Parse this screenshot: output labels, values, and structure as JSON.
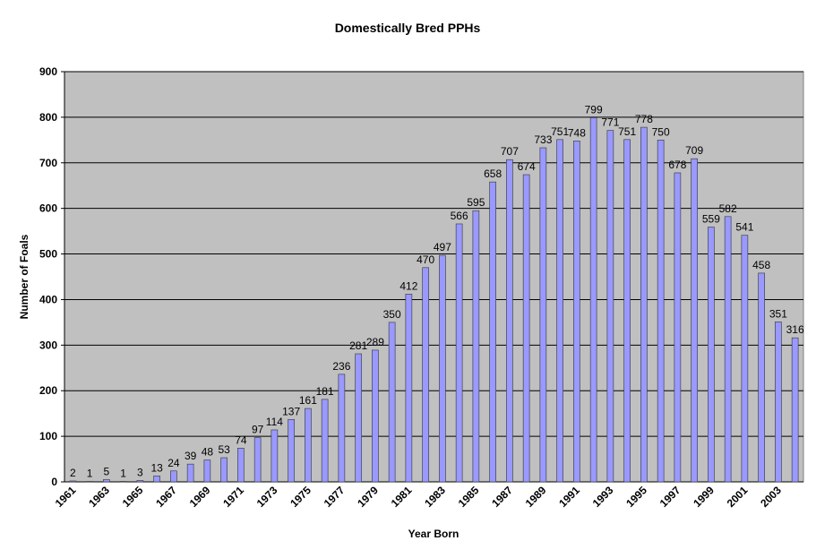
{
  "chart_data": {
    "type": "bar",
    "title": "Domestically Bred PPHs",
    "x_label": "Year Born",
    "y_label": "Number of Foals",
    "categories": [
      "1961",
      null,
      "1963",
      null,
      "1965",
      null,
      "1967",
      null,
      "1969",
      null,
      "1971",
      null,
      "1973",
      null,
      "1975",
      null,
      "1977",
      null,
      "1979",
      null,
      "1981",
      null,
      "1983",
      null,
      "1985",
      null,
      "1987",
      null,
      "1989",
      null,
      "1991",
      null,
      "1993",
      null,
      "1995",
      null,
      "1997",
      null,
      "1999",
      null,
      "2001",
      null,
      "2003",
      null
    ],
    "values": [
      2,
      1,
      5,
      1,
      3,
      13,
      24,
      39,
      48,
      53,
      74,
      97,
      114,
      137,
      161,
      181,
      236,
      281,
      289,
      350,
      412,
      470,
      497,
      566,
      595,
      658,
      707,
      674,
      733,
      751,
      748,
      799,
      771,
      751,
      778,
      750,
      678,
      709,
      559,
      582,
      541,
      458,
      351,
      316
    ],
    "color": "#9999ff",
    "ylim": [
      0,
      900
    ],
    "yticks": [
      0,
      100,
      200,
      300,
      400,
      500,
      600,
      700,
      800,
      900
    ],
    "grid": true
  }
}
